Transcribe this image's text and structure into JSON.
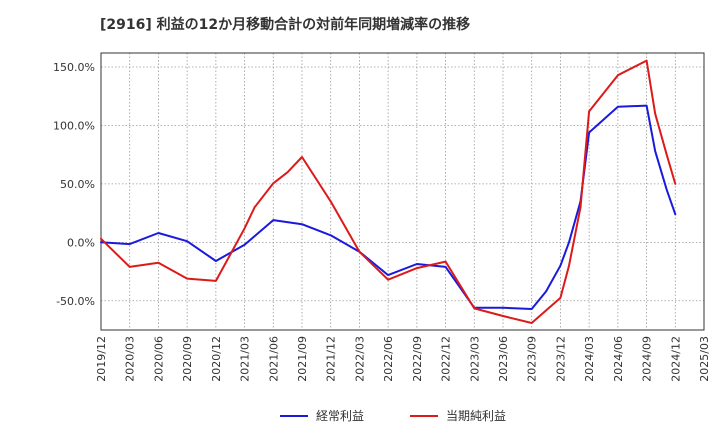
{
  "chart_data": {
    "type": "line",
    "title": "[2916]  利益の12か月移動合計の対前年同期増減率の推移",
    "xlabel": "",
    "ylabel": "",
    "ylim": [
      -75,
      162
    ],
    "yticks": [
      150,
      100,
      50,
      0,
      -50
    ],
    "ytick_labels": [
      "150.0%",
      "100.0%",
      "50.0%",
      "0.0%",
      "-50.0%"
    ],
    "x_labels": [
      "2019/12",
      "2020/03",
      "2020/06",
      "2020/09",
      "2020/12",
      "2021/03",
      "2021/06",
      "2021/09",
      "2021/12",
      "2022/03",
      "2022/06",
      "2022/09",
      "2022/12",
      "2023/03",
      "2023/06",
      "2023/09",
      "2023/12",
      "2024/03",
      "2024/06",
      "2024/09",
      "2024/12",
      "2025/03"
    ],
    "grid": true,
    "legend_position": "bottom",
    "series": [
      {
        "name": "経常利益",
        "color": "#1a1adc",
        "points": [
          [
            0,
            0
          ],
          [
            1,
            -1.5
          ],
          [
            2,
            8
          ],
          [
            3,
            1
          ],
          [
            4,
            -16
          ],
          [
            5,
            -2
          ],
          [
            6,
            19
          ],
          [
            7,
            15.5
          ],
          [
            8,
            6
          ],
          [
            9,
            -8
          ],
          [
            10,
            -28
          ],
          [
            11,
            -18.5
          ],
          [
            12,
            -21
          ],
          [
            13,
            -56
          ],
          [
            14,
            -56
          ],
          [
            15,
            -57
          ],
          [
            15.5,
            -42
          ],
          [
            16,
            -20
          ],
          [
            16.3,
            0
          ],
          [
            16.7,
            35
          ],
          [
            17,
            94
          ],
          [
            18,
            116
          ],
          [
            19,
            117
          ],
          [
            19.3,
            78
          ],
          [
            19.7,
            45
          ],
          [
            20,
            24
          ]
        ]
      },
      {
        "name": "当期純利益",
        "color": "#dd1a1a",
        "points": [
          [
            0,
            3
          ],
          [
            1,
            -21
          ],
          [
            2,
            -17.5
          ],
          [
            3,
            -31
          ],
          [
            4,
            -33
          ],
          [
            5,
            12
          ],
          [
            5.35,
            30
          ],
          [
            6,
            50.5
          ],
          [
            6.5,
            60
          ],
          [
            7,
            73
          ],
          [
            8,
            35
          ],
          [
            9,
            -8
          ],
          [
            10,
            -32
          ],
          [
            11,
            -22
          ],
          [
            12,
            -16.5
          ],
          [
            13,
            -56.5
          ],
          [
            14,
            -63
          ],
          [
            15,
            -69
          ],
          [
            16,
            -47.5
          ],
          [
            16.3,
            -20
          ],
          [
            16.7,
            30
          ],
          [
            17,
            112
          ],
          [
            18,
            143
          ],
          [
            19,
            155.5
          ],
          [
            19.3,
            110
          ],
          [
            19.7,
            75
          ],
          [
            20,
            50
          ]
        ]
      }
    ]
  }
}
